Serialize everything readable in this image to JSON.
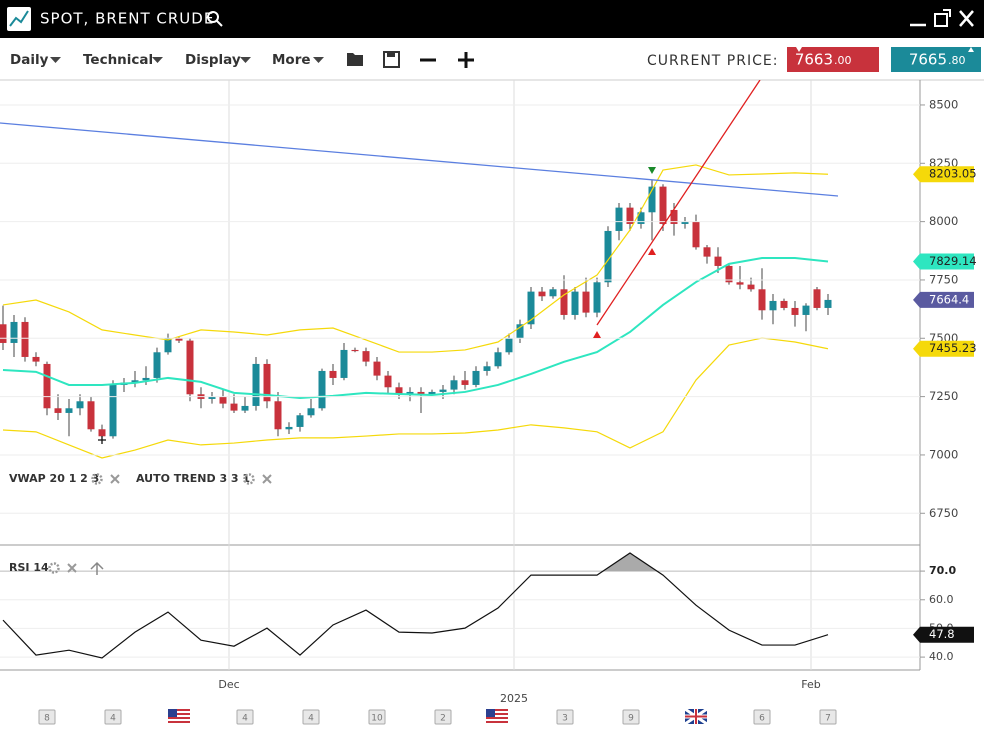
{
  "header": {
    "title": "SPOT, BRENT CRUDE"
  },
  "toolbar": {
    "menus": [
      "Daily",
      "Technical",
      "Display",
      "More"
    ],
    "price_label": "CURRENT PRICE:",
    "bid": {
      "main": "7663",
      "decimals": ".00"
    },
    "ask": {
      "main": "7665",
      "decimals": ".80"
    }
  },
  "indicators": {
    "vwap": "VWAP 20 1 2 3",
    "auto_trend": "AUTO TREND 3 3 1",
    "rsi": "RSI 14"
  },
  "events": [
    "8",
    "4",
    "4",
    "4",
    "10",
    "2",
    "3",
    "9",
    "6",
    "7"
  ],
  "chart_data": {
    "type": "candlestick",
    "x_labels": [
      "Dec",
      "2025",
      "Feb"
    ],
    "ylim": [
      6614,
      8607
    ],
    "yticks": [
      8500,
      8250,
      8000,
      7750,
      7500,
      7250,
      7000,
      6750
    ],
    "grid": true,
    "up_color": "#1b8a99",
    "down_color": "#c8323c",
    "candles": {
      "open": [
        7560,
        7480,
        7570,
        7420,
        7390,
        7200,
        7180,
        7200,
        7230,
        7110,
        7080,
        7300,
        7310,
        7320,
        7330,
        7440,
        7500,
        7490,
        7260,
        7240,
        7250,
        7220,
        7190,
        7210,
        7390,
        7230,
        7110,
        7120,
        7170,
        7200,
        7360,
        7330,
        7450,
        7445,
        7400,
        7340,
        7290,
        7260,
        7270,
        7260,
        7270,
        7280,
        7320,
        7300,
        7360,
        7380,
        7440,
        7500,
        7560,
        7700,
        7680,
        7710,
        7600,
        7700,
        7610,
        7740,
        7960,
        8060,
        7990,
        8040,
        8150,
        8050,
        7990,
        8000,
        7890,
        7850,
        7810,
        7740,
        7730,
        7710,
        7620,
        7660,
        7630,
        7600,
        7710,
        7630
      ],
      "high": [
        7640,
        7600,
        7590,
        7440,
        7400,
        7260,
        7240,
        7260,
        7250,
        7130,
        7320,
        7330,
        7360,
        7380,
        7460,
        7520,
        7510,
        7500,
        7290,
        7270,
        7280,
        7260,
        7250,
        7420,
        7410,
        7270,
        7140,
        7180,
        7240,
        7370,
        7390,
        7480,
        7460,
        7460,
        7420,
        7360,
        7310,
        7290,
        7290,
        7280,
        7300,
        7340,
        7360,
        7380,
        7400,
        7460,
        7520,
        7580,
        7720,
        7720,
        7720,
        7770,
        7720,
        7760,
        7760,
        7980,
        8080,
        8080,
        8060,
        8180,
        8160,
        8080,
        8020,
        8030,
        7900,
        7890,
        7820,
        7810,
        7760,
        7800,
        7690,
        7670,
        7660,
        7650,
        7720,
        7690
      ],
      "low": [
        7450,
        7420,
        7400,
        7380,
        7170,
        7150,
        7080,
        7170,
        7100,
        7060,
        7070,
        7270,
        7290,
        7300,
        7310,
        7430,
        7480,
        7230,
        7200,
        7220,
        7200,
        7180,
        7180,
        7190,
        7200,
        7080,
        7090,
        7100,
        7160,
        7190,
        7300,
        7320,
        7440,
        7380,
        7320,
        7260,
        7240,
        7230,
        7180,
        7260,
        7240,
        7260,
        7280,
        7290,
        7340,
        7370,
        7430,
        7480,
        7540,
        7660,
        7670,
        7580,
        7580,
        7590,
        7590,
        7720,
        7920,
        7960,
        7970,
        7920,
        7960,
        7940,
        7970,
        7880,
        7820,
        7780,
        7730,
        7710,
        7700,
        7580,
        7560,
        7620,
        7550,
        7530,
        7620,
        7600
      ],
      "close": [
        7480,
        7570,
        7420,
        7400,
        7200,
        7180,
        7200,
        7230,
        7110,
        7080,
        7300,
        7310,
        7320,
        7330,
        7440,
        7500,
        7490,
        7260,
        7240,
        7250,
        7220,
        7190,
        7210,
        7390,
        7230,
        7110,
        7120,
        7170,
        7200,
        7360,
        7330,
        7450,
        7445,
        7400,
        7340,
        7290,
        7260,
        7270,
        7260,
        7270,
        7280,
        7320,
        7300,
        7360,
        7380,
        7440,
        7500,
        7560,
        7700,
        7680,
        7710,
        7600,
        7700,
        7610,
        7740,
        7960,
        8060,
        7990,
        8040,
        8150,
        7990,
        7990,
        8000,
        7890,
        7850,
        7810,
        7740,
        7730,
        7710,
        7620,
        7660,
        7630,
        7600,
        7640,
        7630,
        7664.4
      ]
    },
    "bands": {
      "x": [
        0,
        3,
        6,
        9,
        12,
        15,
        18,
        21,
        24,
        27,
        30,
        33,
        36,
        39,
        42,
        45,
        48,
        51,
        54,
        57,
        60,
        63,
        66,
        69,
        72,
        75
      ],
      "upper": {
        "color": "#f5d90a",
        "values": [
          7643,
          7664,
          7613,
          7536,
          7514,
          7493,
          7536,
          7527,
          7514,
          7536,
          7544,
          7493,
          7441,
          7441,
          7450,
          7484,
          7579,
          7686,
          7771,
          7964,
          8221,
          8243,
          8200,
          8204,
          8209,
          8203.05
        ]
      },
      "middle": {
        "color": "#2ee6c0",
        "values": [
          7364,
          7356,
          7300,
          7300,
          7309,
          7330,
          7313,
          7266,
          7257,
          7244,
          7253,
          7266,
          7261,
          7257,
          7270,
          7300,
          7347,
          7399,
          7441,
          7527,
          7643,
          7741,
          7819,
          7844,
          7844,
          7829.14
        ]
      },
      "lower": {
        "color": "#f5d90a",
        "values": [
          7107,
          7099,
          7043,
          6987,
          7021,
          7064,
          7043,
          7051,
          7064,
          7073,
          7073,
          7081,
          7090,
          7090,
          7094,
          7107,
          7129,
          7116,
          7099,
          7030,
          7099,
          7321,
          7471,
          7501,
          7484,
          7455.23
        ]
      }
    },
    "rsi": {
      "ylim": [
        35.5,
        79.1
      ],
      "yticks": [
        {
          "value": 70,
          "label": "70.0"
        },
        {
          "value": 60,
          "label": "60.0"
        },
        {
          "value": 50,
          "label": "50.0"
        },
        {
          "value": 40,
          "label": "40.0"
        }
      ],
      "values": [
        52.9,
        40.7,
        42.4,
        39.7,
        48.7,
        55.7,
        45.9,
        43.8,
        50.1,
        40.7,
        51.2,
        56.4,
        48.7,
        48.4,
        50.1,
        57.1,
        68.6,
        68.6,
        68.6,
        76.3,
        68.6,
        58.1,
        49.4,
        44.2,
        44.2,
        47.8
      ]
    }
  }
}
